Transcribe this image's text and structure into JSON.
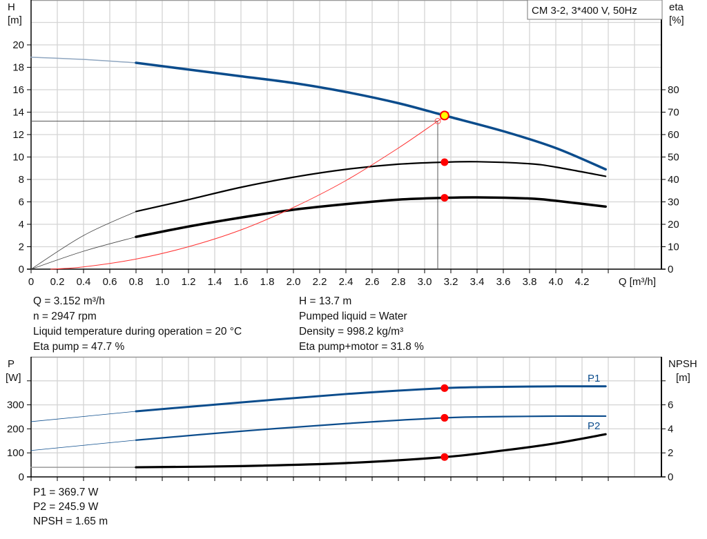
{
  "chart_data": [
    {
      "type": "line",
      "title": "",
      "legend_box": "CM 3-2, 3*400 V, 50Hz",
      "xlabel": "Q [m³/h]",
      "ylabel_left": "H",
      "ylabel_left_unit": "[m]",
      "ylabel_right": "eta",
      "ylabel_right_unit": "[%]",
      "xlim": [
        0,
        4.8
      ],
      "ylim_left": [
        0,
        24
      ],
      "ylim_right": [
        0,
        120
      ],
      "x_ticks": [
        "0",
        "0.2",
        "0.4",
        "0.6",
        "0.8",
        "1.0",
        "1.2",
        "1.4",
        "1.6",
        "1.8",
        "2.0",
        "2.2",
        "2.4",
        "2.6",
        "2.8",
        "3.0",
        "3.2",
        "3.4",
        "3.6",
        "3.8",
        "4.0",
        "4.2"
      ],
      "y_ticks_left": [
        "0",
        "2",
        "4",
        "6",
        "8",
        "10",
        "12",
        "14",
        "16",
        "18",
        "20"
      ],
      "y_ticks_right": [
        "0",
        "10",
        "20",
        "30",
        "40",
        "50",
        "60",
        "70",
        "80"
      ],
      "grid": true,
      "operating_range": [
        0.8,
        4.38
      ],
      "duty_point": {
        "Q": 3.152,
        "H": 13.7,
        "eta_pump": 47.7,
        "eta_pump_motor": 31.8
      },
      "reference_point": {
        "Q": 3.1,
        "H": 13.2
      },
      "series": [
        {
          "id": "H",
          "axis": "left",
          "color": "#0b4c8c",
          "x": [
            0,
            0.4,
            0.8,
            1.2,
            1.6,
            2.0,
            2.4,
            2.8,
            3.152,
            3.6,
            4.0,
            4.38
          ],
          "y": [
            18.9,
            18.7,
            18.4,
            17.8,
            17.2,
            16.6,
            15.8,
            14.8,
            13.7,
            12.3,
            10.8,
            8.9
          ]
        },
        {
          "id": "eta_pump",
          "axis": "right",
          "color": "#000000",
          "x": [
            0,
            0.4,
            0.8,
            1.2,
            1.6,
            2.0,
            2.4,
            2.8,
            3.152,
            3.4,
            3.8,
            4.0,
            4.38
          ],
          "y": [
            0,
            15,
            25.7,
            31,
            36.5,
            41,
            44.5,
            46.8,
            47.7,
            47.9,
            47,
            45.5,
            41.4
          ]
        },
        {
          "id": "eta_pump_motor",
          "axis": "right",
          "color": "#000000",
          "x": [
            0,
            0.4,
            0.8,
            1.2,
            1.6,
            2.0,
            2.4,
            2.8,
            3.152,
            3.4,
            3.8,
            4.0,
            4.38
          ],
          "y": [
            0,
            8,
            14.4,
            19,
            23,
            26.5,
            29,
            31,
            31.8,
            32,
            31.5,
            30.5,
            27.9
          ]
        },
        {
          "id": "system",
          "axis": "left",
          "color": "#ff3030",
          "x": [
            0.15,
            0.4,
            0.8,
            1.2,
            1.6,
            2.0,
            2.4,
            2.8,
            3.1,
            3.152
          ],
          "y": [
            0,
            0.2,
            0.9,
            2.0,
            3.5,
            5.5,
            7.9,
            10.8,
            13.2,
            13.6
          ]
        }
      ]
    },
    {
      "type": "line",
      "title": "",
      "ylabel_left": "P",
      "ylabel_left_unit": "[W]",
      "ylabel_right": "NPSH",
      "ylabel_right_unit": "[m]",
      "xlim": [
        0,
        4.8
      ],
      "ylim_left": [
        0,
        500
      ],
      "ylim_right": [
        0,
        10
      ],
      "y_ticks_left": [
        "0",
        "100",
        "200",
        "300"
      ],
      "y_ticks_right": [
        "0",
        "2",
        "4",
        "6"
      ],
      "grid": true,
      "duty_point": {
        "Q": 3.152,
        "P1": 369.7,
        "P2": 245.9,
        "NPSH": 1.65
      },
      "series": [
        {
          "name": "P1",
          "axis": "left",
          "color": "#0b4c8c",
          "x": [
            0,
            0.8,
            1.6,
            2.4,
            3.152,
            3.6,
            4.0,
            4.38
          ],
          "y": [
            230,
            273,
            310,
            345,
            369.7,
            375,
            377,
            377
          ]
        },
        {
          "name": "P2",
          "axis": "left",
          "color": "#0b4c8c",
          "x": [
            0,
            0.8,
            1.6,
            2.4,
            3.152,
            3.6,
            4.0,
            4.38
          ],
          "y": [
            110,
            153,
            190,
            222,
            245.9,
            251,
            253,
            253
          ]
        },
        {
          "id": "NPSH",
          "axis": "right",
          "color": "#000000",
          "x": [
            0,
            0.8,
            1.6,
            2.4,
            3.152,
            3.6,
            4.0,
            4.38
          ],
          "y": [
            0.8,
            0.8,
            0.9,
            1.15,
            1.65,
            2.2,
            2.8,
            3.55
          ]
        }
      ]
    }
  ],
  "info_top": {
    "left": [
      "Q = 3.152 m³/h",
      "n = 2947 rpm",
      "Liquid temperature during operation = 20 °C",
      "Eta pump = 47.7 %"
    ],
    "right": [
      "H = 13.7 m",
      "Pumped liquid = Water",
      "Density = 998.2 kg/m³",
      "Eta pump+motor = 31.8 %"
    ]
  },
  "info_bottom": [
    "P1 = 369.7 W",
    "P2 = 245.9 W",
    "NPSH = 1.65 m"
  ]
}
